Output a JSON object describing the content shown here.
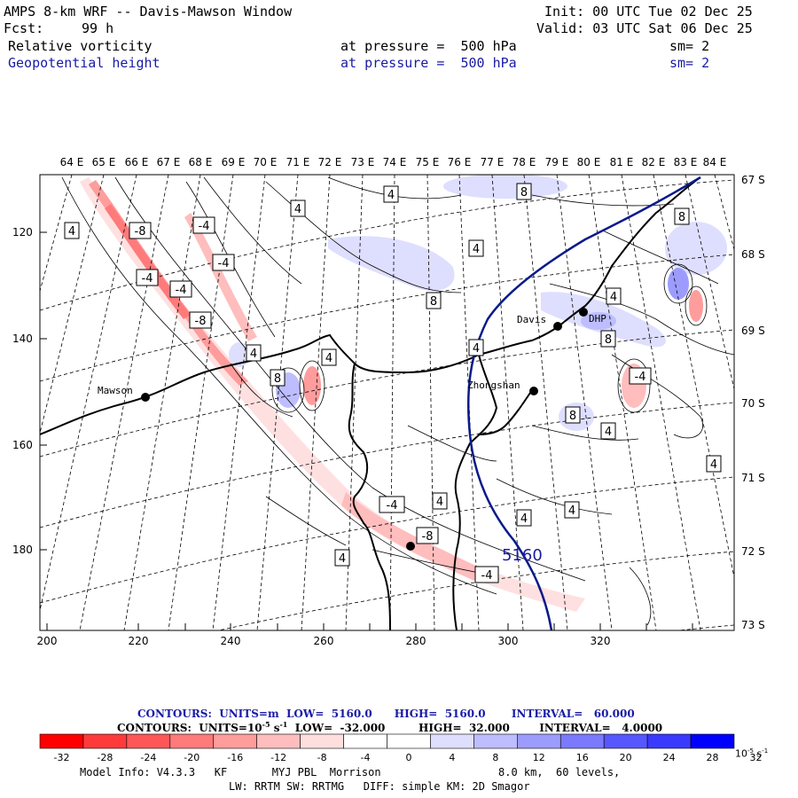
{
  "header": {
    "title": "AMPS 8-km WRF -- Davis-Mawson Window",
    "init": "Init: 00 UTC Tue 02 Dec 25",
    "fcst_label": "Fcst:",
    "fcst_value": "99 h",
    "valid": "Valid: 03 UTC Sat 06 Dec 25",
    "field1": {
      "name": "Relative vorticity",
      "pressure": "at pressure =  500 hPa",
      "sm": "sm= 2"
    },
    "field2": {
      "name": "Geopotential height",
      "pressure": "at pressure =  500 hPa",
      "sm": "sm= 2"
    }
  },
  "map": {
    "lon_labels": [
      "64 E",
      "65 E",
      "66 E",
      "67 E",
      "68 E",
      "69 E",
      "70 E",
      "71 E",
      "72 E",
      "73 E",
      "74 E",
      "75 E",
      "76 E",
      "77 E",
      "78 E",
      "79 E",
      "80 E",
      "81 E",
      "82 E",
      "83 E",
      "84 E"
    ],
    "lat_labels": [
      "67 S",
      "68 S",
      "69 S",
      "70 S",
      "71 S",
      "72 S",
      "73 S"
    ],
    "x_ticks": [
      "200",
      "220",
      "240",
      "260",
      "280",
      "300",
      "320"
    ],
    "y_ticks": [
      "120",
      "140",
      "160",
      "180"
    ],
    "stations": {
      "mawson": "Mawson",
      "davis": "Davis",
      "zhongshan": "Zhongshan",
      "dhp": "DHP"
    },
    "height_label": "5160",
    "contour_labels": [
      "4",
      "4",
      "4",
      "8",
      "4",
      "8",
      "8",
      "4",
      "-8",
      "-4",
      "-4",
      "-8",
      "-4",
      "-4",
      "-8",
      "4",
      "8",
      "4",
      "4",
      "8",
      "-4",
      "8",
      "4",
      "4",
      "-4",
      "4",
      "4",
      "4",
      "-8",
      "4",
      "-4",
      "4"
    ]
  },
  "contour_info": {
    "line1": "CONTOURS:  UNITS=m  LOW=  5160.0      HIGH=  5160.0       INTERVAL=   60.000",
    "line2_a": "CONTOURS:  UNITS=10",
    "line2_exp": "-5",
    "line2_b": " s",
    "line2_exp2": "-1",
    "line2_c": "  LOW=  -32.000         HIGH=  32.000        INTERVAL=   4.0000"
  },
  "colorbar": {
    "labels": [
      "-32",
      "-28",
      "-24",
      "-20",
      "-16",
      "-12",
      "-8",
      "-4",
      "0",
      "4",
      "8",
      "12",
      "16",
      "20",
      "24",
      "28",
      "32"
    ],
    "units": "10",
    "units_exp": "-5",
    "units_s": " s",
    "units_exp2": "-1",
    "colors": [
      "#ff0000",
      "#ff3a3a",
      "#ff5757",
      "#ff7a7a",
      "#ff9c9c",
      "#ffbdbd",
      "#ffdede",
      "#ffffff",
      "#ffffff",
      "#dedeff",
      "#bdbdff",
      "#9c9cff",
      "#7a7aff",
      "#5757ff",
      "#3a3aff",
      "#0000ff"
    ]
  },
  "model_info": {
    "line1_a": "Model Info: V4.3.3   KF       MYJ PBL  Morrison",
    "line1_b": "8.0 km,  60 levels,",
    "line2": "LW: RRTM SW: RRTMG   DIFF: simple KM: 2D Smagor"
  }
}
